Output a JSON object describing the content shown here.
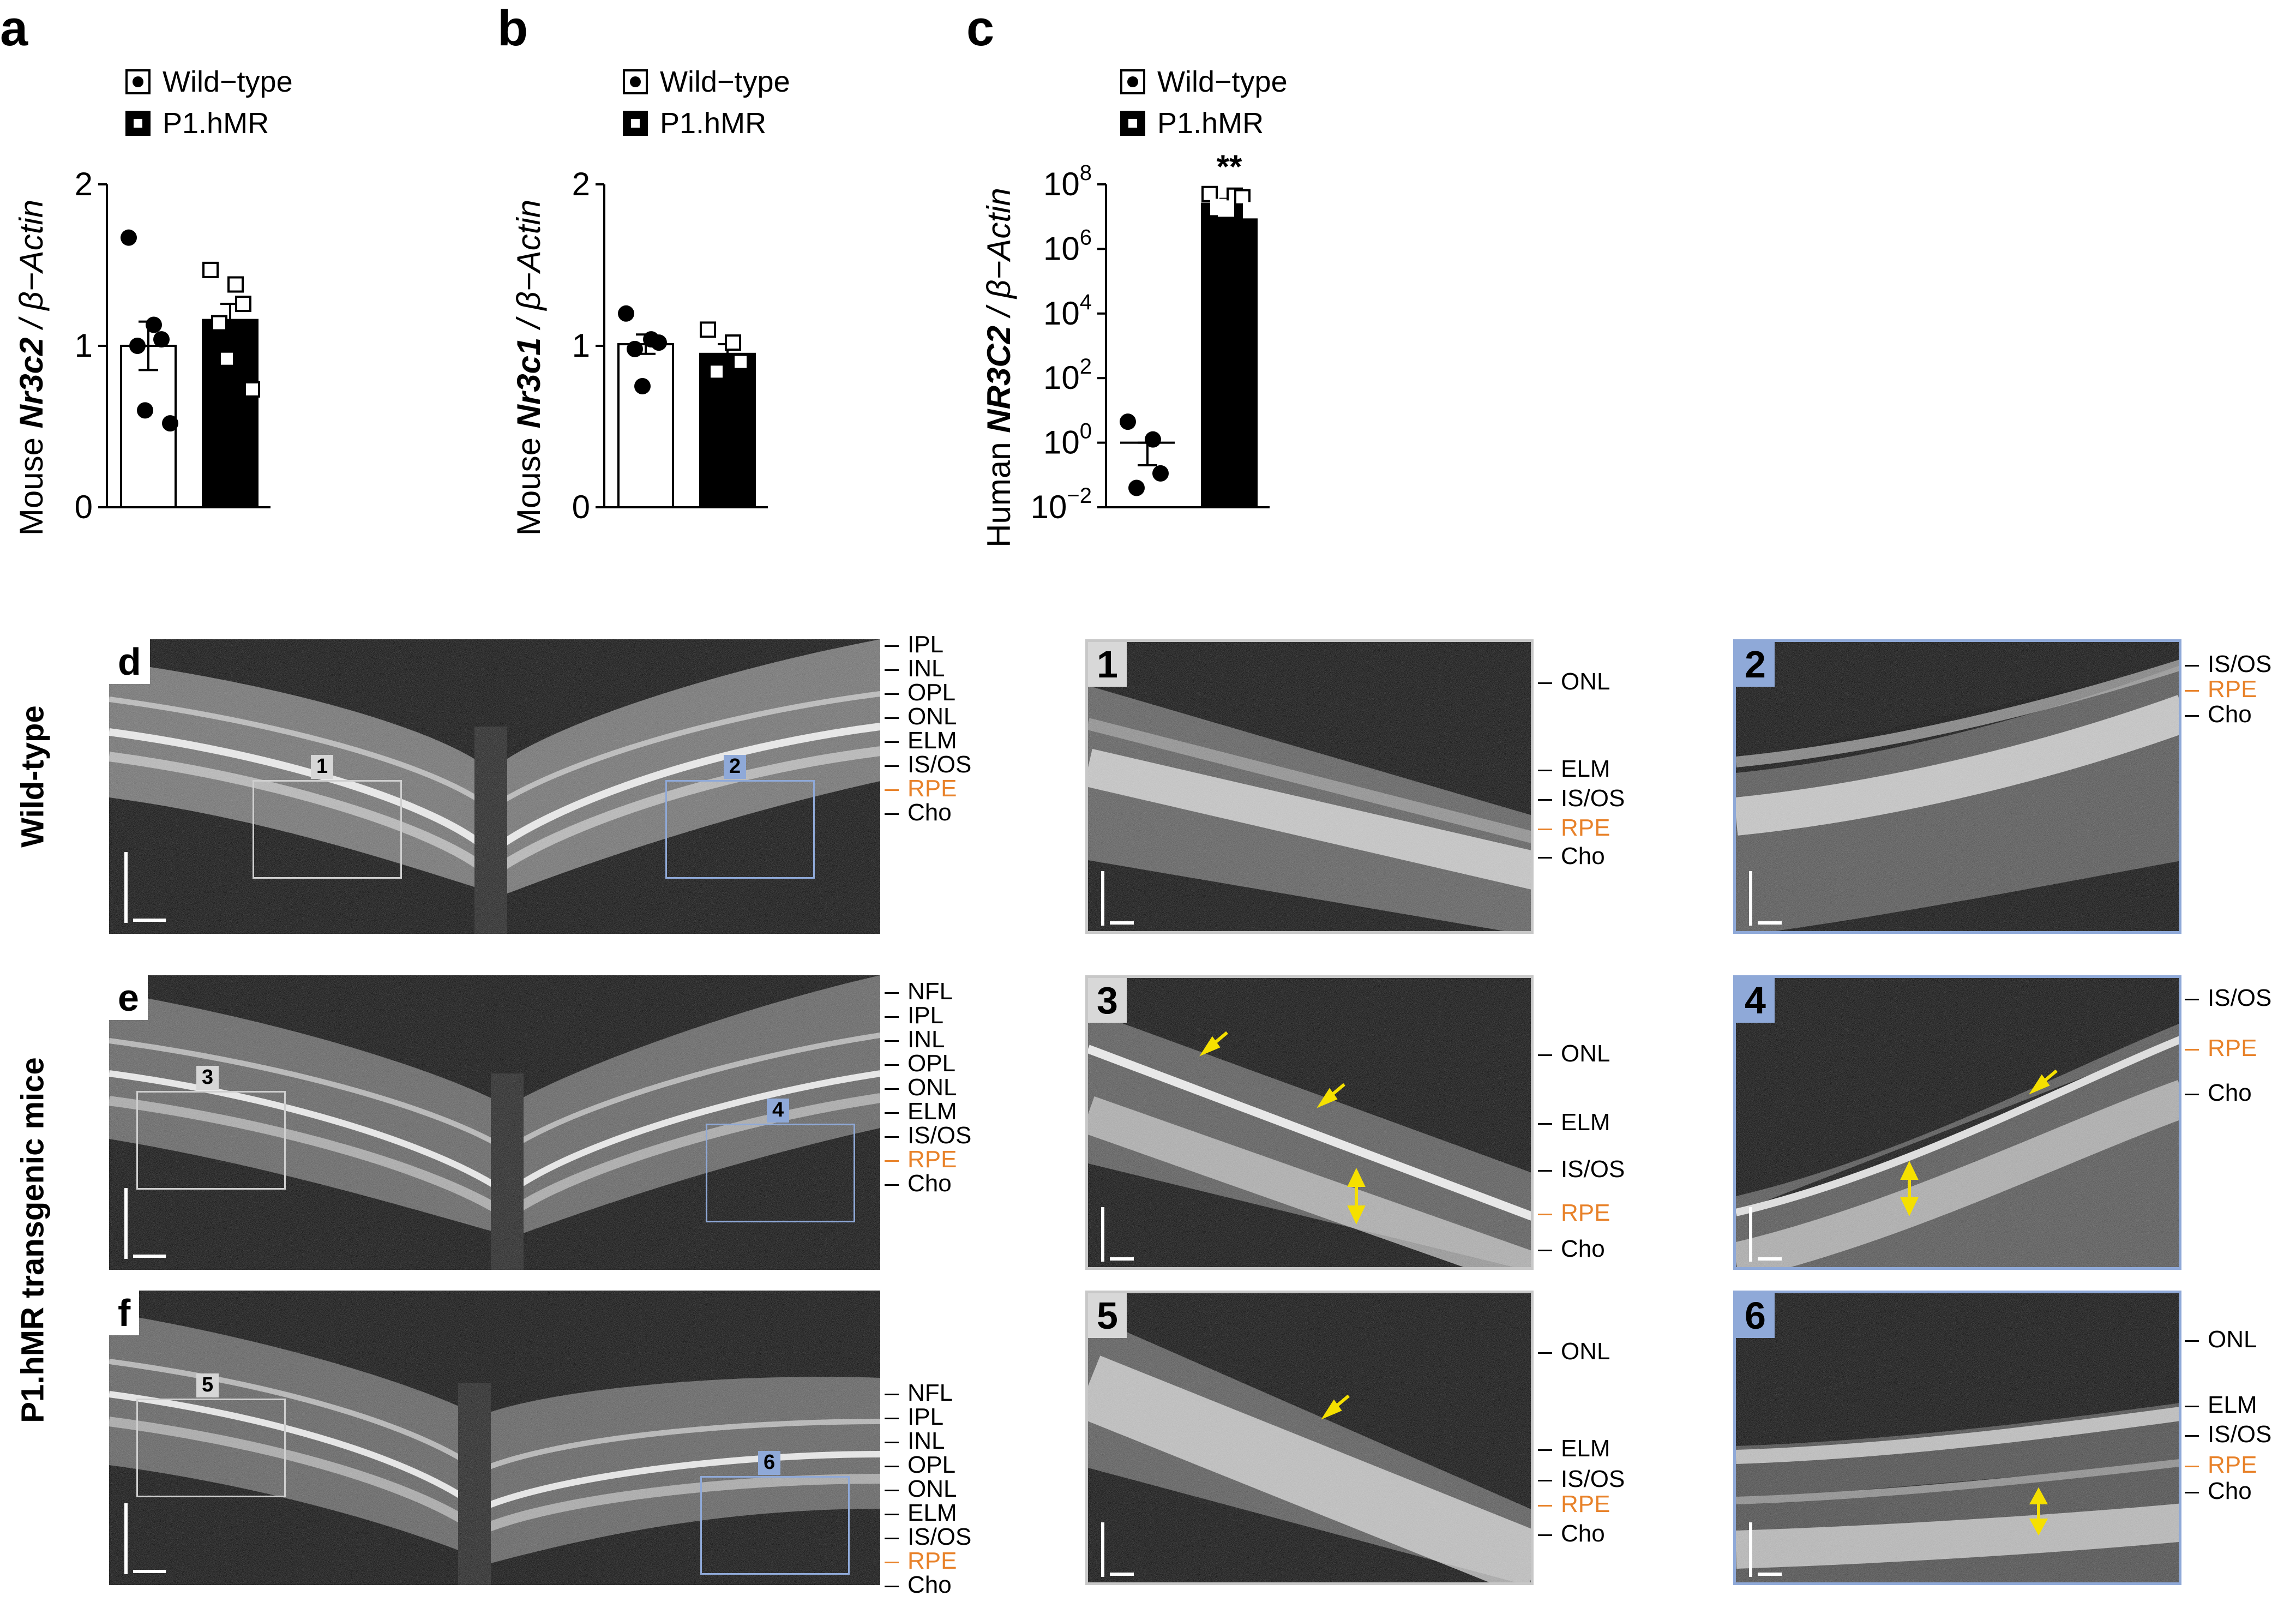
{
  "panels": {
    "a": {
      "letter": "a"
    },
    "b": {
      "letter": "b"
    },
    "c": {
      "letter": "c"
    },
    "d": {
      "letter": "d"
    },
    "e": {
      "letter": "e"
    },
    "f": {
      "letter": "f"
    }
  },
  "legend": {
    "wild_type": "Wild−type",
    "transgenic": "P1.hMR"
  },
  "row_labels": {
    "wild_type": "Wild-type",
    "transgenic": "P1.hMR transgenic mice"
  },
  "chart_data": [
    {
      "type": "bar",
      "panel": "a",
      "ylabel_prefix": "Mouse ",
      "ylabel_gene": "Nr3c2",
      "ylabel_suffix": " / β−Actin",
      "ylim": [
        0,
        2
      ],
      "yticks": [
        "0",
        "1",
        "2"
      ],
      "categories": [
        "Wild−type",
        "P1.hMR"
      ],
      "series": [
        {
          "name": "Wild−type",
          "mean": 1.0,
          "sem": 0.15,
          "points": [
            1.67,
            1.13,
            1.04,
            1.0,
            0.6,
            0.52
          ]
        },
        {
          "name": "P1.hMR",
          "mean": 1.16,
          "sem": 0.1,
          "points": [
            1.47,
            1.38,
            1.26,
            1.14,
            0.92,
            0.73
          ]
        }
      ]
    },
    {
      "type": "bar",
      "panel": "b",
      "ylabel_prefix": "Mouse ",
      "ylabel_gene": "Nr3c1",
      "ylabel_suffix": " / β−Actin",
      "ylim": [
        0,
        2
      ],
      "yticks": [
        "0",
        "1",
        "2"
      ],
      "categories": [
        "Wild−type",
        "P1.hMR"
      ],
      "series": [
        {
          "name": "Wild−type",
          "mean": 1.01,
          "sem": 0.06,
          "points": [
            1.2,
            1.04,
            1.02,
            0.98,
            0.75
          ]
        },
        {
          "name": "P1.hMR",
          "mean": 0.95,
          "sem": 0.06,
          "points": [
            1.1,
            1.02,
            0.9,
            0.84
          ]
        }
      ]
    },
    {
      "type": "bar",
      "panel": "c",
      "scale": "log",
      "ylabel_prefix": "Human ",
      "ylabel_gene": "NR3C2",
      "ylabel_suffix": " / β−Actin",
      "ylim_exp": [
        -2,
        8
      ],
      "yticks": [
        {
          "base": "10",
          "exp": "−2",
          "v": -2
        },
        {
          "base": "10",
          "exp": "0",
          "v": 0
        },
        {
          "base": "10",
          "exp": "2",
          "v": 2
        },
        {
          "base": "10",
          "exp": "4",
          "v": 4
        },
        {
          "base": "10",
          "exp": "6",
          "v": 6
        },
        {
          "base": "10",
          "exp": "8",
          "v": 8
        }
      ],
      "categories": [
        "Wild−type",
        "P1.hMR"
      ],
      "significance": "**",
      "series": [
        {
          "name": "Wild−type",
          "mean_log10": 0.0,
          "sem_log10_low": -0.7,
          "sem_log10_high": 0.0,
          "points_log10": [
            0.65,
            0.1,
            -0.95,
            -1.4
          ]
        },
        {
          "name": "P1.hMR",
          "mean_log10": 7.4,
          "sem_log10_low": 7.3,
          "sem_log10_high": 7.55,
          "points_log10": [
            7.7,
            7.65,
            7.6,
            7.3,
            7.25,
            7.2
          ]
        }
      ]
    }
  ],
  "overview": {
    "d": {
      "rois": [
        "1",
        "2"
      ],
      "layers": [
        "IPL",
        "INL",
        "OPL",
        "ONL",
        "ELM",
        "IS/OS",
        "RPE",
        "Cho"
      ]
    },
    "e": {
      "rois": [
        "3",
        "4"
      ],
      "layers": [
        "NFL",
        "IPL",
        "INL",
        "OPL",
        "ONL",
        "ELM",
        "IS/OS",
        "RPE",
        "Cho"
      ]
    },
    "f": {
      "rois": [
        "5",
        "6"
      ],
      "layers": [
        "NFL",
        "IPL",
        "INL",
        "OPL",
        "ONL",
        "ELM",
        "IS/OS",
        "RPE",
        "Cho"
      ]
    }
  },
  "zooms": {
    "z1": {
      "label": "1",
      "layers": [
        "ONL",
        "ELM",
        "IS/OS",
        "RPE",
        "Cho"
      ]
    },
    "z2": {
      "label": "2",
      "layers": [
        "IS/OS",
        "RPE",
        "Cho"
      ]
    },
    "z3": {
      "label": "3",
      "layers": [
        "ONL",
        "ELM",
        "IS/OS",
        "RPE",
        "Cho"
      ]
    },
    "z4": {
      "label": "4",
      "layers": [
        "IS/OS",
        "RPE",
        "Cho"
      ]
    },
    "z5": {
      "label": "5",
      "layers": [
        "ONL",
        "ELM",
        "IS/OS",
        "RPE",
        "Cho"
      ]
    },
    "z6": {
      "label": "6",
      "layers": [
        "ONL",
        "ELM",
        "IS/OS",
        "RPE",
        "Cho"
      ]
    }
  },
  "colors": {
    "rpe": "#e8822a",
    "roi_grey": "#cfcfcf",
    "roi_blue": "#8fa9d8",
    "arrow": "#f5e000"
  }
}
